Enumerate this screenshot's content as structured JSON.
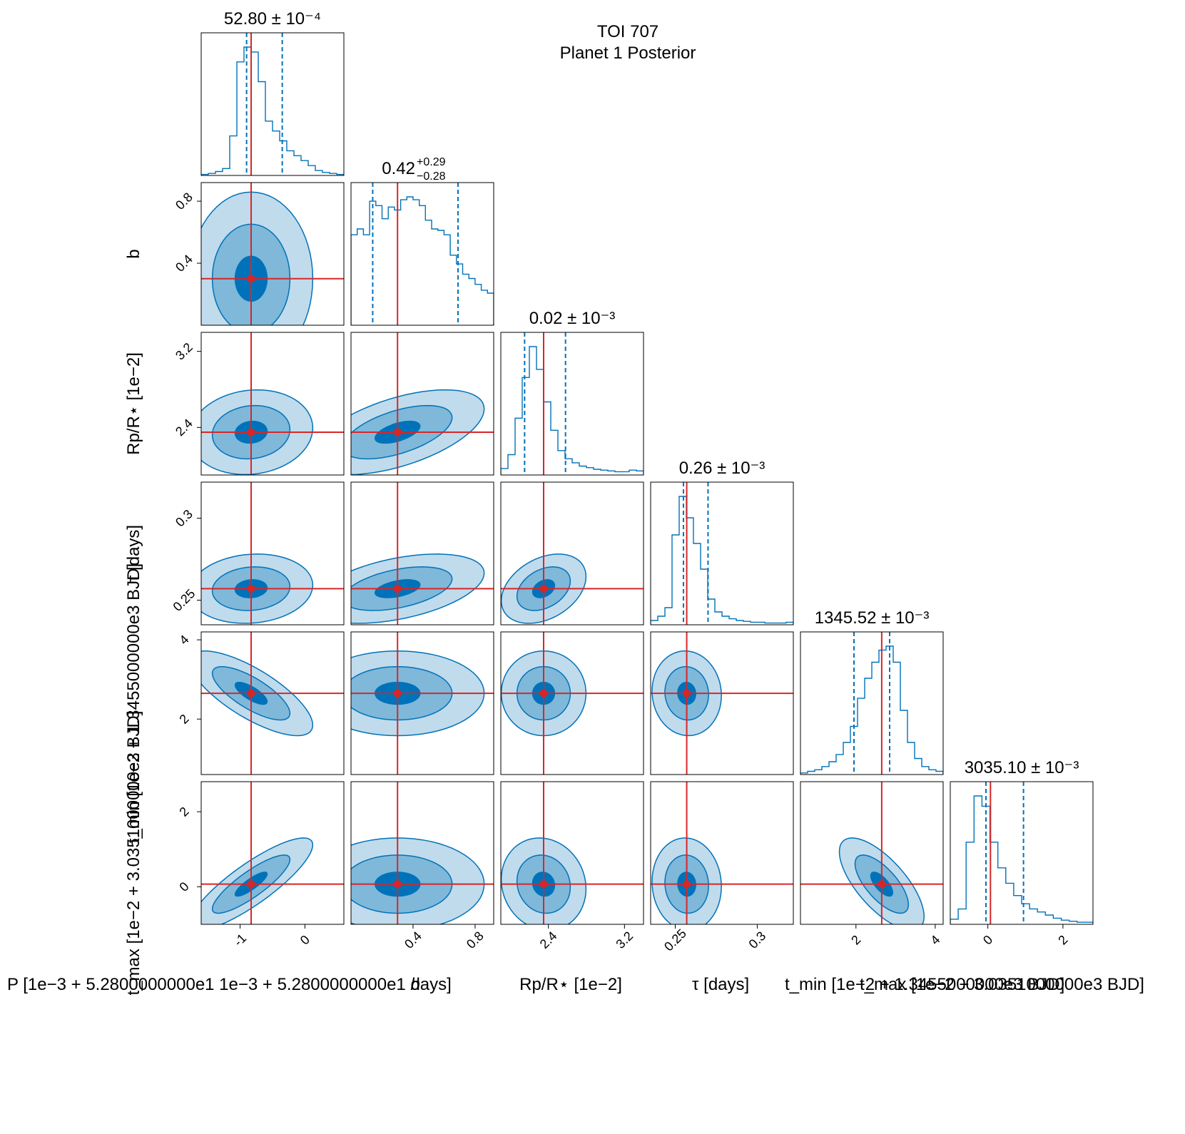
{
  "figure": {
    "title_line1": "TOI 707",
    "title_line2": "Planet 1 Posterior"
  },
  "colors": {
    "contour_dark": "#0072b9",
    "contour_mid": "#7fb8d9",
    "contour_light": "#c0dbec",
    "line": "#0072b9",
    "truth": "#d62728"
  },
  "chart_data": {
    "type": "corner",
    "parameters": [
      {
        "name": "P",
        "axis_label": "P [1e−3 + 5.2800000000e1  1e−3 + 5.2800000000e1   days]",
        "panel_title": "52.80 ± 10⁻⁴",
        "range": [
          -1.6,
          0.6
        ],
        "ticks": [
          -1,
          0
        ],
        "truth": -0.83,
        "q16": -0.9,
        "q84": -0.35
      },
      {
        "name": "b",
        "axis_label": "b",
        "panel_title_main": "0.42",
        "panel_title_up": "+0.29",
        "panel_title_dn": "−0.28",
        "range": [
          0.0,
          0.92
        ],
        "ticks": [
          0.4,
          0.8
        ],
        "truth": 0.3,
        "q16": 0.14,
        "q84": 0.69
      },
      {
        "name": "Rp/R*",
        "axis_label": "Rp/R⋆ [1e−2]",
        "panel_title": "0.02 ± 10⁻³",
        "range": [
          1.9,
          3.4
        ],
        "ticks": [
          2.4,
          3.2
        ],
        "truth": 2.35,
        "q16": 2.15,
        "q84": 2.58
      },
      {
        "name": "tau",
        "axis_label": "τ [days]",
        "panel_title": "0.26 ± 10⁻³",
        "range": [
          0.235,
          0.322
        ],
        "ticks": [
          0.25,
          0.3
        ],
        "truth": 0.257,
        "q16": 0.255,
        "q84": 0.27
      },
      {
        "name": "t_min",
        "axis_label": "t_min [1e−2 + 1.3455000000e3 BJD]",
        "panel_title": "1345.52 ± 10⁻³",
        "range": [
          0.6,
          4.2
        ],
        "ticks": [
          2,
          4
        ],
        "truth": 2.65,
        "q16": 1.95,
        "q84": 2.85
      },
      {
        "name": "t_max",
        "axis_label": "t_max [1e−2 + 3.0351000000e3  BJD]",
        "panel_title": "3035.10 ± 10⁻³",
        "range": [
          -1.0,
          2.8
        ],
        "ticks": [
          0,
          2
        ],
        "truth": 0.07,
        "q16": -0.05,
        "q84": 0.95
      }
    ],
    "histograms": [
      [
        1,
        2,
        4,
        7,
        40,
        115,
        130,
        125,
        95,
        55,
        45,
        35,
        25,
        20,
        15,
        10,
        5,
        3,
        2,
        1
      ],
      [
        62,
        66,
        62,
        85,
        82,
        73,
        81,
        79,
        86,
        88,
        86,
        82,
        72,
        66,
        65,
        62,
        48,
        42,
        35,
        32,
        28,
        24,
        22
      ],
      [
        8,
        25,
        70,
        120,
        158,
        130,
        90,
        55,
        30,
        20,
        15,
        11,
        9,
        7,
        6,
        5,
        4,
        4,
        6,
        5
      ],
      [
        5,
        10,
        20,
        105,
        150,
        125,
        95,
        65,
        30,
        15,
        10,
        7,
        5,
        4,
        3,
        3,
        2,
        2,
        2,
        3
      ],
      [
        2,
        4,
        6,
        10,
        16,
        25,
        40,
        60,
        95,
        120,
        140,
        155,
        160,
        140,
        80,
        40,
        20,
        10,
        6,
        4
      ],
      [
        5,
        15,
        80,
        125,
        115,
        80,
        55,
        40,
        28,
        20,
        15,
        12,
        9,
        6,
        4,
        3,
        2,
        2
      ]
    ],
    "contour_levels": [
      "dark",
      "mid",
      "light"
    ],
    "show_truth": true,
    "show_quantiles": true,
    "grid": false
  }
}
